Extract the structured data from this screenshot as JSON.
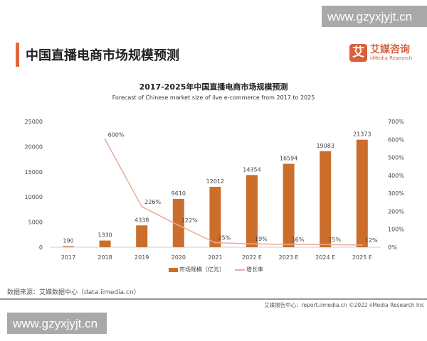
{
  "watermark": "www.gzyxjyjt.cn",
  "header": {
    "title": "中国直播电商市场规模预测",
    "logo_mark": "艾",
    "logo_cn": "艾媒咨询",
    "logo_en": "iiMedia Research"
  },
  "chart_data": {
    "type": "bar+line",
    "title": "2017-2025年中国直播电商市场规模预测",
    "subtitle": "Forecast of Chinese market size of live e-commerce from 2017 to 2025",
    "categories": [
      "2017",
      "2018",
      "2019",
      "2020",
      "2021",
      "2022 E",
      "2023 E",
      "2024 E",
      "2025 E"
    ],
    "series": [
      {
        "name": "市场规模（亿元）",
        "type": "bar",
        "axis": "left",
        "color": "#cc6e2b",
        "values": [
          190,
          1330,
          4338,
          9610,
          12012,
          14354,
          16594,
          19083,
          21373
        ]
      },
      {
        "name": "增长率",
        "type": "line",
        "axis": "right",
        "color": "#e6ad98",
        "values": [
          null,
          600,
          226,
          122,
          25,
          19,
          16,
          15,
          12
        ],
        "labels": [
          "",
          "600%",
          "226%",
          "122%",
          "25%",
          "19%",
          "16%",
          "15%",
          "12%"
        ]
      }
    ],
    "left_axis": {
      "ylim": [
        0,
        25000
      ],
      "ticks": [
        "0",
        "5000",
        "10000",
        "15000",
        "20000",
        "25000"
      ]
    },
    "right_axis": {
      "ylim": [
        0,
        700
      ],
      "ticks": [
        "0%",
        "100%",
        "200%",
        "300%",
        "400%",
        "500%",
        "600%",
        "700%"
      ]
    },
    "grid": false,
    "legend_position": "bottom"
  },
  "source": "数据来源：艾媒数据中心（data.iimedia.cn）",
  "footer": "艾媒报告中心：report.iimedia.cn   ©2022  iiMedia Research  Inc"
}
